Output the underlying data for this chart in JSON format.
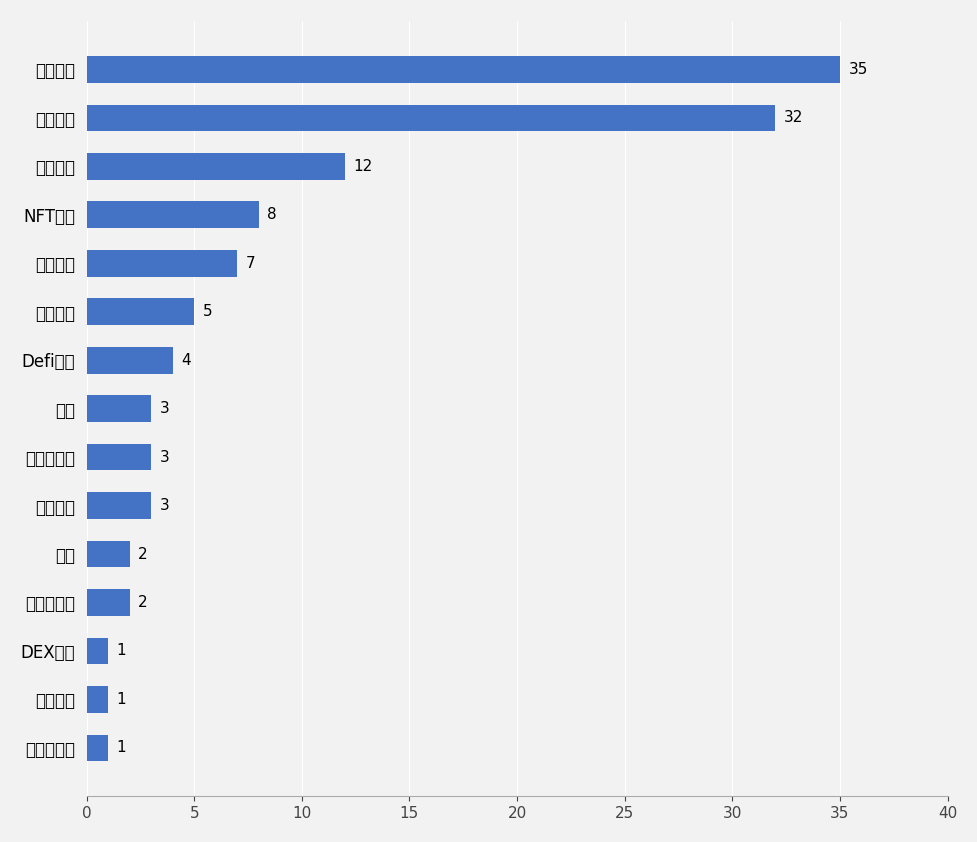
{
  "categories": [
    "供应链管理",
    "数字支付",
    "DEX协议",
    "分布式存储",
    "跨链",
    "数据存储",
    "区块链游戏",
    "波卡",
    "Defi相关",
    "资产管理",
    "资产交易",
    "NFT相关",
    "智能合约",
    "数字资产",
    "加密货币"
  ],
  "values": [
    1,
    1,
    1,
    2,
    2,
    3,
    3,
    3,
    4,
    5,
    7,
    8,
    12,
    32,
    35
  ],
  "bar_color": "#4472C4",
  "background_color": "#F2F2F2",
  "xlim": [
    0,
    40
  ],
  "xticks": [
    0,
    5,
    10,
    15,
    20,
    25,
    30,
    35,
    40
  ],
  "bar_height": 0.55,
  "label_fontsize": 12,
  "tick_fontsize": 11,
  "value_fontsize": 11,
  "figsize": [
    9.78,
    8.42
  ],
  "dpi": 100
}
